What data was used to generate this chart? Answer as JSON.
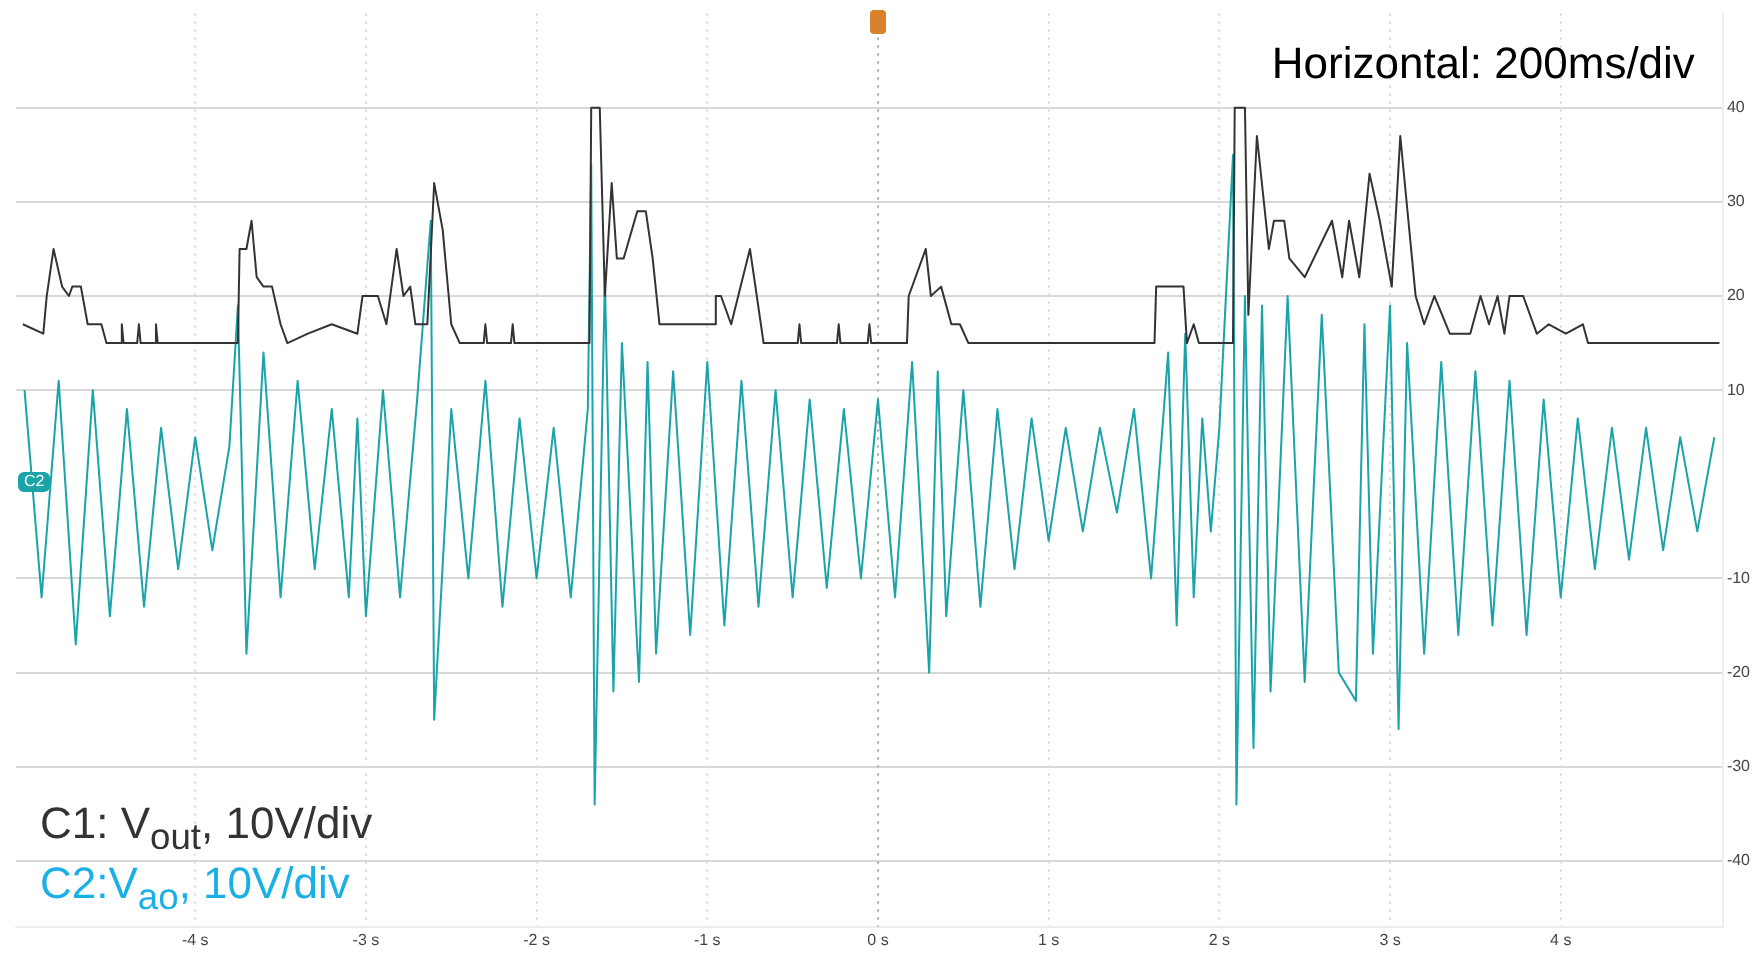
{
  "chart_data": {
    "type": "line",
    "annotations": [
      "Horizontal: 200ms/div",
      "C1: V$_{out}$, 10V/div",
      "C2:V$_{ao}$, 10V/div",
      "C2"
    ],
    "xlim": [
      -5.05,
      4.95
    ],
    "xticks": [
      {
        "value": -4,
        "label": "-4 s"
      },
      {
        "value": -3,
        "label": "-3 s"
      },
      {
        "value": -2,
        "label": "-2 s"
      },
      {
        "value": -1,
        "label": "-1 s"
      },
      {
        "value": 0,
        "label": "0 s"
      },
      {
        "value": 1,
        "label": "1 s"
      },
      {
        "value": 2,
        "label": "2 s"
      },
      {
        "value": 3,
        "label": "3 s"
      },
      {
        "value": 4,
        "label": "4 s"
      }
    ],
    "ylim": [
      -47,
      50
    ],
    "yticks": [
      -40,
      -30,
      -20,
      -10,
      10,
      20,
      30,
      40
    ],
    "grid": true,
    "marker": "none",
    "line_style": "solid",
    "ref_lines": [
      {
        "axis": "x",
        "value": 0,
        "label": null,
        "color": "#aaaaaa",
        "line_style": "dotted"
      }
    ],
    "series": [
      {
        "color": "#333333",
        "x": [
          -5.01,
          -4.89,
          -4.87,
          -4.83,
          -4.78,
          -4.74,
          -4.72,
          -4.67,
          -4.63,
          -4.55,
          -4.52,
          -4.44,
          -4.43,
          -4.42,
          -4.34,
          -4.33,
          -4.32,
          -4.24,
          -4.23,
          -4.22,
          -3.75,
          -3.74,
          -3.7,
          -3.67,
          -3.64,
          -3.6,
          -3.55,
          -3.5,
          -3.46,
          -3.34,
          -3.2,
          -3.05,
          -3.02,
          -2.93,
          -2.88,
          -2.82,
          -2.78,
          -2.74,
          -2.71,
          -2.64,
          -2.6,
          -2.55,
          -2.5,
          -2.45,
          -2.31,
          -2.3,
          -2.29,
          -2.15,
          -2.14,
          -2.13,
          -1.69,
          -1.68,
          -1.63,
          -1.6,
          -1.56,
          -1.53,
          -1.49,
          -1.41,
          -1.36,
          -1.32,
          -1.28,
          -1.15,
          -0.96,
          -0.95,
          -0.92,
          -0.86,
          -0.75,
          -0.67,
          -0.47,
          -0.46,
          -0.45,
          -0.24,
          -0.23,
          -0.22,
          -0.06,
          -0.05,
          -0.04,
          0.17,
          0.18,
          0.28,
          0.31,
          0.37,
          0.43,
          0.48,
          0.53,
          1.62,
          1.63,
          1.79,
          1.81,
          1.85,
          1.88,
          2.08,
          2.09,
          2.15,
          2.17,
          2.22,
          2.29,
          2.32,
          2.38,
          2.41,
          2.5,
          2.66,
          2.72,
          2.76,
          2.82,
          2.88,
          2.94,
          3.01,
          3.06,
          3.15,
          3.2,
          3.26,
          3.35,
          3.47,
          3.53,
          3.58,
          3.63,
          3.67,
          3.7,
          3.78,
          3.86,
          3.93,
          4.03,
          4.13,
          4.16,
          4.93
        ],
        "values": [
          17,
          16,
          20,
          25,
          21,
          20,
          21,
          21,
          17,
          17,
          15,
          15,
          17,
          15,
          15,
          17,
          15,
          15,
          17,
          15,
          15,
          25,
          25,
          28,
          22,
          21,
          21,
          17,
          15,
          16,
          17,
          16,
          20,
          20,
          17,
          25,
          20,
          21,
          17,
          17,
          32,
          27,
          17,
          15,
          15,
          17,
          15,
          15,
          17,
          15,
          15,
          40,
          40,
          20,
          32,
          24,
          24,
          29,
          29,
          24,
          17,
          17,
          17,
          20,
          20,
          17,
          25,
          15,
          15,
          17,
          15,
          15,
          17,
          15,
          15,
          17,
          15,
          15,
          20,
          25,
          20,
          21,
          17,
          17,
          15,
          15,
          21,
          21,
          15,
          17,
          15,
          15,
          40,
          40,
          18,
          37,
          25,
          28,
          28,
          24,
          22,
          28,
          22,
          28,
          22,
          33,
          28,
          21,
          37,
          20,
          17,
          20,
          16,
          16,
          20,
          17,
          20,
          16,
          20,
          20,
          16,
          17,
          16,
          17,
          15,
          15
        ]
      },
      {
        "color": "#1aa3a8",
        "x": [
          -5.0,
          -4.9,
          -4.8,
          -4.7,
          -4.6,
          -4.5,
          -4.4,
          -4.3,
          -4.2,
          -4.1,
          -4.0,
          -3.9,
          -3.8,
          -3.75,
          -3.7,
          -3.6,
          -3.5,
          -3.4,
          -3.3,
          -3.2,
          -3.1,
          -3.05,
          -3.0,
          -2.9,
          -2.8,
          -2.7,
          -2.62,
          -2.6,
          -2.5,
          -2.4,
          -2.3,
          -2.2,
          -2.1,
          -2.0,
          -1.9,
          -1.8,
          -1.7,
          -1.68,
          -1.66,
          -1.6,
          -1.55,
          -1.5,
          -1.4,
          -1.35,
          -1.3,
          -1.2,
          -1.1,
          -1.0,
          -0.9,
          -0.8,
          -0.7,
          -0.6,
          -0.5,
          -0.4,
          -0.3,
          -0.2,
          -0.1,
          0.0,
          0.1,
          0.2,
          0.3,
          0.35,
          0.4,
          0.5,
          0.6,
          0.7,
          0.8,
          0.9,
          1.0,
          1.1,
          1.2,
          1.3,
          1.4,
          1.5,
          1.6,
          1.7,
          1.75,
          1.8,
          1.85,
          1.9,
          1.95,
          2.0,
          2.08,
          2.1,
          2.15,
          2.2,
          2.25,
          2.3,
          2.4,
          2.5,
          2.6,
          2.7,
          2.8,
          2.85,
          2.9,
          3.0,
          3.05,
          3.1,
          3.2,
          3.3,
          3.4,
          3.5,
          3.6,
          3.7,
          3.8,
          3.9,
          4.0,
          4.1,
          4.2,
          4.3,
          4.4,
          4.5,
          4.6,
          4.7,
          4.8,
          4.9
        ],
        "values": [
          10,
          -12,
          11,
          -17,
          10,
          -14,
          8,
          -13,
          6,
          -9,
          5,
          -7,
          4,
          19,
          -18,
          14,
          -12,
          11,
          -9,
          8,
          -12,
          7,
          -14,
          10,
          -12,
          9,
          28,
          -25,
          8,
          -10,
          11,
          -13,
          7,
          -10,
          6,
          -12,
          8,
          34,
          -34,
          22,
          -22,
          15,
          -21,
          13,
          -18,
          12,
          -16,
          13,
          -15,
          11,
          -13,
          10,
          -12,
          9,
          -11,
          8,
          -10,
          9,
          -12,
          13,
          -20,
          12,
          -14,
          10,
          -13,
          8,
          -9,
          7,
          -6,
          6,
          -5,
          6,
          -3,
          8,
          -10,
          14,
          -15,
          16,
          -12,
          7,
          -5,
          6,
          35,
          -34,
          20,
          -28,
          19,
          -22,
          20,
          -21,
          18,
          -20,
          -23,
          17,
          -18,
          19,
          -26,
          15,
          -18,
          13,
          -16,
          12,
          -15,
          11,
          -16,
          9,
          -12,
          7,
          -9,
          6,
          -8,
          6,
          -7,
          5,
          -5,
          5
        ]
      }
    ]
  }
}
